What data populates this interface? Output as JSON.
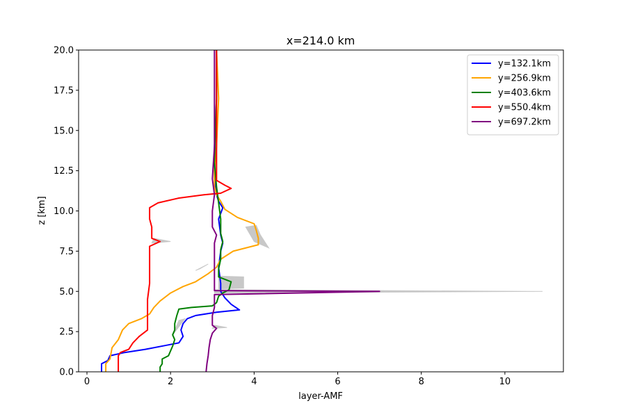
{
  "chart_data": {
    "type": "line",
    "title": "x=214.0 km",
    "xlabel": "layer-AMF",
    "ylabel": "z [km]",
    "xlim": [
      -0.2,
      11.4
    ],
    "ylim": [
      0,
      20
    ],
    "xticks": [
      0,
      2,
      4,
      6,
      8,
      10
    ],
    "yticks": [
      0.0,
      2.5,
      5.0,
      7.5,
      10.0,
      12.5,
      15.0,
      17.5,
      20.0
    ],
    "xtick_labels": [
      "0",
      "2",
      "4",
      "6",
      "8",
      "10"
    ],
    "ytick_labels": [
      "0.0",
      "2.5",
      "5.0",
      "7.5",
      "10.0",
      "12.5",
      "15.0",
      "17.5",
      "20.0"
    ],
    "grid": false,
    "legend_position": "top-right",
    "uncertainty_color": "#c8c8c8",
    "series": [
      {
        "name": "y=132.1km",
        "color": "#0000ff",
        "points": [
          [
            0.35,
            0.0
          ],
          [
            0.35,
            0.5
          ],
          [
            0.5,
            0.7
          ],
          [
            0.55,
            1.0
          ],
          [
            0.9,
            1.2
          ],
          [
            1.4,
            1.4
          ],
          [
            1.9,
            1.65
          ],
          [
            2.2,
            1.8
          ],
          [
            2.3,
            2.2
          ],
          [
            2.25,
            2.6
          ],
          [
            2.3,
            3.0
          ],
          [
            2.4,
            3.3
          ],
          [
            2.6,
            3.5
          ],
          [
            3.1,
            3.7
          ],
          [
            3.65,
            3.85
          ],
          [
            3.45,
            4.2
          ],
          [
            3.3,
            4.6
          ],
          [
            3.2,
            5.0
          ],
          [
            3.2,
            5.5
          ],
          [
            3.15,
            6.5
          ],
          [
            3.2,
            7.5
          ],
          [
            3.25,
            8.0
          ],
          [
            3.2,
            8.5
          ],
          [
            3.15,
            9.5
          ],
          [
            3.25,
            10.2
          ],
          [
            3.15,
            10.6
          ],
          [
            3.1,
            11.0
          ],
          [
            3.05,
            12.0
          ],
          [
            3.05,
            14.0
          ],
          [
            3.1,
            17.0
          ],
          [
            3.1,
            20.0
          ]
        ]
      },
      {
        "name": "y=256.9km",
        "color": "#ffa500",
        "points": [
          [
            0.45,
            0.0
          ],
          [
            0.45,
            0.5
          ],
          [
            0.55,
            0.8
          ],
          [
            0.6,
            1.5
          ],
          [
            0.75,
            2.0
          ],
          [
            0.85,
            2.6
          ],
          [
            1.0,
            3.0
          ],
          [
            1.3,
            3.3
          ],
          [
            1.5,
            3.6
          ],
          [
            1.6,
            4.0
          ],
          [
            1.75,
            4.4
          ],
          [
            2.0,
            4.9
          ],
          [
            2.3,
            5.3
          ],
          [
            2.6,
            5.6
          ],
          [
            2.9,
            6.1
          ],
          [
            3.1,
            6.5
          ],
          [
            3.2,
            7.0
          ],
          [
            3.5,
            7.5
          ],
          [
            4.1,
            7.9
          ],
          [
            4.1,
            8.3
          ],
          [
            4.05,
            8.8
          ],
          [
            4.0,
            9.2
          ],
          [
            3.6,
            9.6
          ],
          [
            3.3,
            10.1
          ],
          [
            3.2,
            10.6
          ],
          [
            3.1,
            11.0
          ],
          [
            3.05,
            11.5
          ],
          [
            3.05,
            12.5
          ],
          [
            3.1,
            14.0
          ],
          [
            3.15,
            17.0
          ],
          [
            3.1,
            20.0
          ]
        ]
      },
      {
        "name": "y=403.6km",
        "color": "#008000",
        "points": [
          [
            1.75,
            0.0
          ],
          [
            1.75,
            0.3
          ],
          [
            1.8,
            0.5
          ],
          [
            1.8,
            0.8
          ],
          [
            1.95,
            1.0
          ],
          [
            2.0,
            1.3
          ],
          [
            2.05,
            1.6
          ],
          [
            2.1,
            2.0
          ],
          [
            2.05,
            2.3
          ],
          [
            2.1,
            2.6
          ],
          [
            2.1,
            3.0
          ],
          [
            2.15,
            3.5
          ],
          [
            2.2,
            3.9
          ],
          [
            2.5,
            4.0
          ],
          [
            3.0,
            4.1
          ],
          [
            3.1,
            4.3
          ],
          [
            3.15,
            4.7
          ],
          [
            3.25,
            4.9
          ],
          [
            3.4,
            5.1
          ],
          [
            3.45,
            5.6
          ],
          [
            3.15,
            5.9
          ],
          [
            3.15,
            6.4
          ],
          [
            3.2,
            7.0
          ],
          [
            3.2,
            7.6
          ],
          [
            3.25,
            8.1
          ],
          [
            3.2,
            8.6
          ],
          [
            3.2,
            9.5
          ],
          [
            3.15,
            10.5
          ],
          [
            3.1,
            11.5
          ],
          [
            3.05,
            13.0
          ],
          [
            3.1,
            17.0
          ],
          [
            3.1,
            20.0
          ]
        ]
      },
      {
        "name": "y=550.4km",
        "color": "#ff0000",
        "points": [
          [
            0.75,
            0.0
          ],
          [
            0.75,
            0.5
          ],
          [
            0.75,
            1.0
          ],
          [
            0.8,
            1.2
          ],
          [
            1.0,
            1.4
          ],
          [
            1.1,
            1.8
          ],
          [
            1.25,
            2.2
          ],
          [
            1.45,
            2.6
          ],
          [
            1.45,
            3.0
          ],
          [
            1.45,
            3.5
          ],
          [
            1.45,
            4.0
          ],
          [
            1.45,
            4.5
          ],
          [
            1.5,
            5.5
          ],
          [
            1.5,
            6.5
          ],
          [
            1.5,
            7.0
          ],
          [
            1.5,
            7.8
          ],
          [
            1.75,
            8.1
          ],
          [
            1.55,
            8.3
          ],
          [
            1.55,
            9.0
          ],
          [
            1.5,
            9.5
          ],
          [
            1.5,
            10.2
          ],
          [
            1.7,
            10.5
          ],
          [
            2.2,
            10.8
          ],
          [
            2.8,
            11.0
          ],
          [
            3.2,
            11.1
          ],
          [
            3.45,
            11.4
          ],
          [
            3.3,
            11.6
          ],
          [
            3.1,
            11.9
          ],
          [
            3.1,
            12.5
          ],
          [
            3.1,
            14.0
          ],
          [
            3.1,
            17.0
          ],
          [
            3.1,
            20.0
          ]
        ]
      },
      {
        "name": "y=697.2km",
        "color": "#800080",
        "points": [
          [
            2.85,
            0.0
          ],
          [
            2.87,
            0.5
          ],
          [
            2.9,
            1.0
          ],
          [
            2.92,
            1.5
          ],
          [
            2.95,
            2.0
          ],
          [
            3.0,
            2.4
          ],
          [
            3.1,
            2.7
          ],
          [
            3.0,
            2.9
          ],
          [
            3.0,
            3.5
          ],
          [
            3.05,
            4.0
          ],
          [
            3.05,
            4.8
          ],
          [
            7.0,
            5.0
          ],
          [
            3.05,
            5.05
          ],
          [
            3.05,
            6.0
          ],
          [
            3.05,
            7.0
          ],
          [
            3.05,
            8.0
          ],
          [
            3.1,
            8.5
          ],
          [
            3.0,
            9.0
          ],
          [
            3.0,
            10.0
          ],
          [
            3.05,
            11.0
          ],
          [
            3.0,
            12.0
          ],
          [
            3.05,
            14.0
          ],
          [
            3.05,
            17.0
          ],
          [
            3.05,
            20.0
          ]
        ]
      }
    ],
    "uncertainty_bands": [
      [
        [
          3.05,
          4.9
        ],
        [
          10.9,
          5.0
        ],
        [
          3.05,
          5.1
        ]
      ],
      [
        [
          3.15,
          5.15
        ],
        [
          3.75,
          5.2
        ],
        [
          3.75,
          5.9
        ],
        [
          3.15,
          5.95
        ]
      ],
      [
        [
          4.0,
          8.1
        ],
        [
          4.35,
          7.7
        ],
        [
          4.15,
          8.5
        ],
        [
          4.05,
          9.1
        ],
        [
          3.8,
          9.0
        ]
      ],
      [
        [
          1.55,
          8.0
        ],
        [
          2.0,
          8.1
        ],
        [
          1.6,
          8.3
        ]
      ],
      [
        [
          2.05,
          2.3
        ],
        [
          2.35,
          3.3
        ],
        [
          2.2,
          3.2
        ]
      ],
      [
        [
          3.0,
          2.7
        ],
        [
          3.35,
          2.75
        ],
        [
          3.05,
          2.9
        ]
      ],
      [
        [
          2.6,
          6.3
        ],
        [
          2.9,
          6.7
        ],
        [
          2.7,
          6.4
        ]
      ]
    ]
  }
}
